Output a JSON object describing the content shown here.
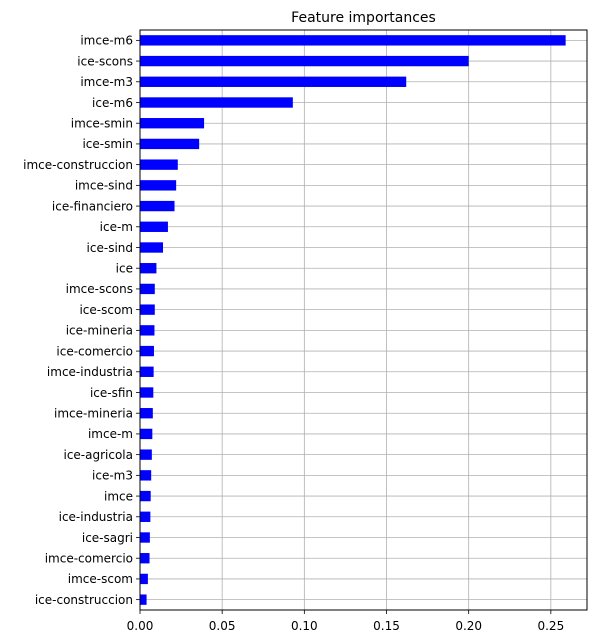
{
  "chart_data": {
    "type": "bar",
    "orientation": "horizontal",
    "title": "Feature importances",
    "xlabel": "",
    "ylabel": "",
    "xlim": [
      0,
      0.272
    ],
    "xticks": [
      0.0,
      0.05,
      0.1,
      0.15,
      0.2,
      0.25
    ],
    "xtick_labels": [
      "0.00",
      "0.05",
      "0.10",
      "0.15",
      "0.20",
      "0.25"
    ],
    "grid": true,
    "bar_color": "#0000ff",
    "categories": [
      "imce-m6",
      "ice-scons",
      "imce-m3",
      "ice-m6",
      "imce-smin",
      "ice-smin",
      "imce-construccion",
      "imce-sind",
      "ice-financiero",
      "ice-m",
      "ice-sind",
      "ice",
      "imce-scons",
      "ice-scom",
      "ice-mineria",
      "ice-comercio",
      "imce-industria",
      "ice-sfin",
      "imce-mineria",
      "imce-m",
      "ice-agricola",
      "ice-m3",
      "imce",
      "ice-industria",
      "ice-sagri",
      "imce-comercio",
      "imce-scom",
      "ice-construccion"
    ],
    "values": [
      0.259,
      0.2,
      0.162,
      0.093,
      0.039,
      0.036,
      0.023,
      0.022,
      0.021,
      0.017,
      0.014,
      0.01,
      0.009,
      0.009,
      0.0088,
      0.0085,
      0.0083,
      0.0081,
      0.0078,
      0.0075,
      0.0072,
      0.0068,
      0.0065,
      0.0063,
      0.006,
      0.0058,
      0.0048,
      0.004
    ]
  }
}
